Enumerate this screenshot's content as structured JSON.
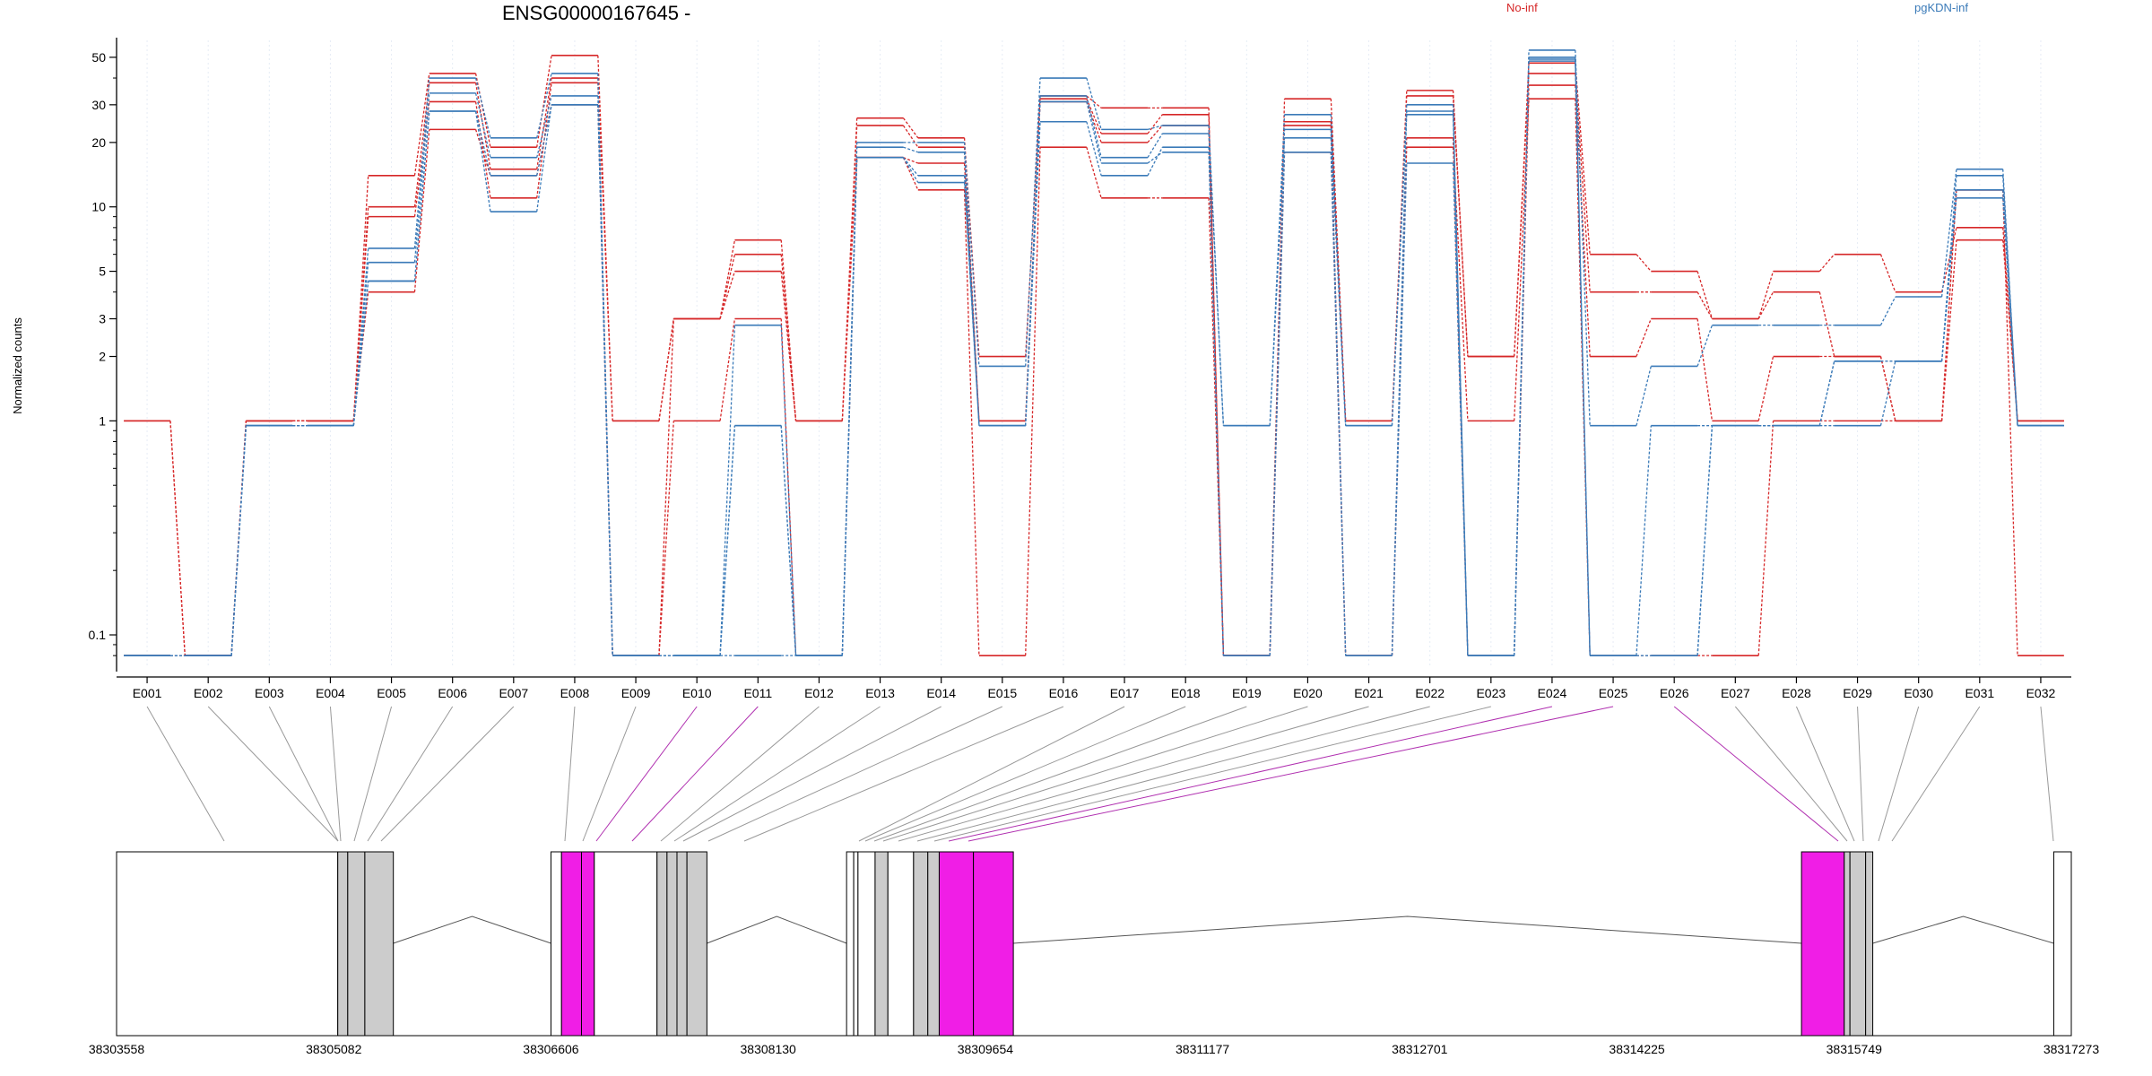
{
  "title": "ENSG00000167645 -",
  "ylabel": "Normalized counts",
  "legend": [
    {
      "name": "No-inf",
      "color": "#d62728"
    },
    {
      "name": "pgKDN-inf",
      "color": "#3a7ab8"
    }
  ],
  "colors": {
    "no_inf": "#d62728",
    "pgkdn_inf": "#3a7ab8",
    "highlight": "#f01ee6",
    "exon_gray": "#cccccc",
    "connector_gray": "#999999"
  },
  "chart_data": {
    "type": "line",
    "title": "ENSG00000167645 -",
    "xlabel": "",
    "ylabel": "Normalized counts",
    "yscale": "log",
    "ylim": [
      0.07,
      60
    ],
    "yticks": [
      "0.1",
      "1",
      "2",
      "3",
      "5",
      "10",
      "20",
      "30",
      "50"
    ],
    "grid": true,
    "legend_position": "top",
    "categories": [
      "E001",
      "E002",
      "E003",
      "E004",
      "E005",
      "E006",
      "E007",
      "E008",
      "E009",
      "E010",
      "E011",
      "E012",
      "E013",
      "E014",
      "E015",
      "E016",
      "E017",
      "E018",
      "E019",
      "E020",
      "E021",
      "E022",
      "E023",
      "E024",
      "E025",
      "E026",
      "E027",
      "E028",
      "E029",
      "E030",
      "E031",
      "E032"
    ],
    "series": [
      {
        "group": "No-inf",
        "values": [
          1,
          0.08,
          1,
          1,
          14,
          42,
          19,
          51,
          1,
          3,
          7,
          1,
          26,
          21,
          2,
          33,
          29,
          29,
          0.08,
          32,
          1,
          35,
          2,
          47,
          6,
          5,
          3,
          5,
          6,
          4,
          8,
          1
        ]
      },
      {
        "group": "No-inf",
        "values": [
          1,
          0.08,
          1,
          1,
          10,
          38,
          15,
          40,
          1,
          3,
          6,
          1,
          24,
          19,
          1,
          32,
          22,
          27,
          0.08,
          25,
          1,
          33,
          2,
          42,
          4,
          4,
          3,
          4,
          2,
          1,
          7,
          1
        ]
      },
      {
        "group": "No-inf",
        "values": [
          0.08,
          0.08,
          1,
          1,
          9,
          31,
          11,
          38,
          0.08,
          3,
          5,
          1,
          17,
          16,
          1,
          31,
          20,
          24,
          0.08,
          24,
          0.08,
          21,
          0.08,
          37,
          2,
          3,
          1,
          2,
          2,
          1,
          12,
          1
        ]
      },
      {
        "group": "No-inf",
        "values": [
          0.08,
          0.08,
          1,
          1,
          4,
          23,
          14,
          30,
          0.08,
          1,
          3,
          0.08,
          17,
          12,
          0.08,
          19,
          11,
          11,
          0.08,
          18,
          0.08,
          19,
          1,
          32,
          0.08,
          0.08,
          0.08,
          1,
          1,
          1,
          12,
          0.08
        ]
      },
      {
        "group": "pgKDN-inf",
        "values": [
          0.08,
          0.08,
          0.95,
          0.95,
          6.4,
          40,
          21,
          42,
          0.08,
          0.08,
          2.8,
          0.08,
          20,
          20,
          1.8,
          40,
          23,
          24,
          0.95,
          27,
          0.95,
          30,
          0.08,
          54,
          0.95,
          1.8,
          2.8,
          2.8,
          2.8,
          3.8,
          15,
          0.95
        ]
      },
      {
        "group": "pgKDN-inf",
        "values": [
          0.08,
          0.08,
          0.95,
          0.95,
          5.5,
          34,
          17,
          33,
          0.08,
          0.08,
          0.95,
          0.08,
          19,
          18,
          0.95,
          33,
          17,
          22,
          0.95,
          21,
          0.95,
          27,
          0.08,
          50,
          0.08,
          0.95,
          0.95,
          0.95,
          1.9,
          1.9,
          14,
          0.95
        ]
      },
      {
        "group": "pgKDN-inf",
        "values": [
          0.08,
          0.08,
          0.95,
          0.95,
          4.5,
          28,
          14,
          30,
          0.08,
          0.08,
          0.95,
          0.08,
          17,
          14,
          0.95,
          25,
          14,
          19,
          0.08,
          18,
          0.08,
          16,
          0.08,
          49,
          0.08,
          0.08,
          0.95,
          0.95,
          1.9,
          1.9,
          11,
          0.95
        ]
      },
      {
        "group": "pgKDN-inf",
        "values": [
          0.08,
          0.08,
          0.95,
          0.95,
          4.5,
          28,
          9.5,
          30,
          0.08,
          0.08,
          0.08,
          0.08,
          17,
          13,
          0.95,
          31,
          16,
          18,
          0.08,
          23,
          0.08,
          28,
          0.08,
          48,
          0.08,
          0.08,
          0.95,
          0.95,
          0.95,
          1.9,
          12,
          0.95
        ]
      }
    ],
    "genomic_axis": {
      "start": 38303558,
      "end": 38317273,
      "ticks": [
        "38303558",
        "38305082",
        "38306606",
        "38308130",
        "38309654",
        "38311177",
        "38312701",
        "38314225",
        "38315749",
        "38317273"
      ]
    },
    "exon_features": [
      {
        "start": 38303558,
        "end": 38305110,
        "fill": "white"
      },
      {
        "start": 38305110,
        "end": 38305180,
        "fill": "gray"
      },
      {
        "start": 38305180,
        "end": 38305300,
        "fill": "gray"
      },
      {
        "start": 38305300,
        "end": 38305500,
        "fill": "gray"
      },
      {
        "start": 38306606,
        "end": 38306680,
        "fill": "white"
      },
      {
        "start": 38306680,
        "end": 38306820,
        "fill": "magenta"
      },
      {
        "start": 38306820,
        "end": 38306910,
        "fill": "magenta"
      },
      {
        "start": 38306910,
        "end": 38307350,
        "fill": "white"
      },
      {
        "start": 38307350,
        "end": 38307420,
        "fill": "gray"
      },
      {
        "start": 38307420,
        "end": 38307490,
        "fill": "gray"
      },
      {
        "start": 38307490,
        "end": 38307560,
        "fill": "gray"
      },
      {
        "start": 38307560,
        "end": 38307700,
        "fill": "gray"
      },
      {
        "start": 38308680,
        "end": 38308730,
        "fill": "white"
      },
      {
        "start": 38308730,
        "end": 38308760,
        "fill": "white"
      },
      {
        "start": 38308760,
        "end": 38308880,
        "fill": "white"
      },
      {
        "start": 38308880,
        "end": 38308970,
        "fill": "gray"
      },
      {
        "start": 38308970,
        "end": 38309150,
        "fill": "white"
      },
      {
        "start": 38309150,
        "end": 38309250,
        "fill": "gray"
      },
      {
        "start": 38309250,
        "end": 38309330,
        "fill": "gray"
      },
      {
        "start": 38309330,
        "end": 38309570,
        "fill": "magenta"
      },
      {
        "start": 38309570,
        "end": 38309850,
        "fill": "magenta"
      },
      {
        "start": 38315380,
        "end": 38315680,
        "fill": "magenta"
      },
      {
        "start": 38315680,
        "end": 38315720,
        "fill": "gray"
      },
      {
        "start": 38315720,
        "end": 38315830,
        "fill": "gray"
      },
      {
        "start": 38315830,
        "end": 38315880,
        "fill": "gray"
      },
      {
        "start": 38317150,
        "end": 38317273,
        "fill": "white"
      }
    ],
    "highlighted_exons": [
      "E010",
      "E011",
      "E024",
      "E025",
      "E026"
    ]
  }
}
